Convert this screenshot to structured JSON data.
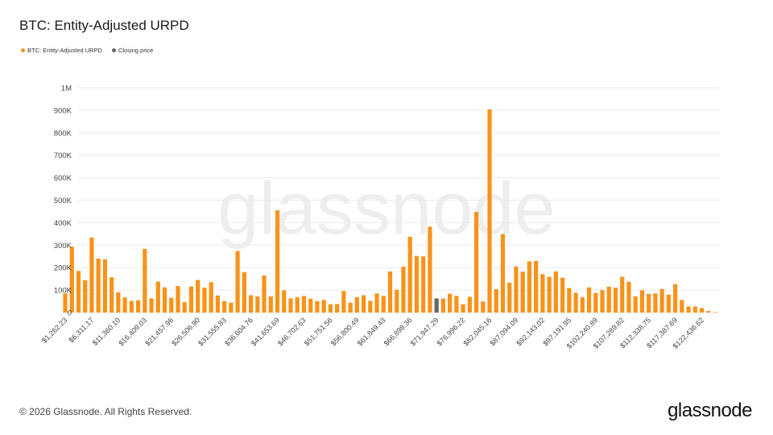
{
  "title": "BTC: Entity-Adjusted URPD",
  "legend": [
    {
      "label": "BTC: Entity-Adjusted URPD",
      "color": "#F7931A"
    },
    {
      "label": "Closing price",
      "color": "#666666"
    }
  ],
  "watermark": "glassnode",
  "footer": {
    "copyright": "© 2026 Glassnode. All Rights Reserved.",
    "logo": "glassnode"
  },
  "chart_data": {
    "type": "bar",
    "title": "BTC: Entity-Adjusted URPD",
    "xlabel": "",
    "ylabel": "",
    "ylim": [
      0,
      1000000
    ],
    "y_tick_labels": [
      "0",
      "100K",
      "200K",
      "300K",
      "400K",
      "500K",
      "600K",
      "700K",
      "800K",
      "900K",
      "1M"
    ],
    "x_tick_labels": [
      "$1,262.23",
      "$6,311.17",
      "$11,360.10",
      "$16,409.03",
      "$21,457.96",
      "$26,506.90",
      "$31,555.83",
      "$36,604.76",
      "$41,653.69",
      "$46,702.63",
      "$51,751.56",
      "$56,800.49",
      "$61,849.43",
      "$66,898.36",
      "$71,947.29",
      "$76,996.22",
      "$82,045.16",
      "$87,094.09",
      "$92,143.02",
      "$97,191.95",
      "$102,240.89",
      "$107,289.82",
      "$112,338.75",
      "$117,387.69",
      "$122,436.62"
    ],
    "x_tick_every": 4,
    "closing_price_bar_index": 56,
    "grid": true,
    "legend_position": "top-left",
    "colors": {
      "bar": "#F7931A",
      "closing": "#666666",
      "grid": "#ECECEC"
    },
    "values": [
      85000,
      293000,
      185000,
      144000,
      334000,
      240000,
      237000,
      157000,
      90000,
      67000,
      52000,
      55000,
      283000,
      63000,
      138000,
      112000,
      66000,
      118000,
      46000,
      116000,
      145000,
      111000,
      135000,
      76000,
      51000,
      44000,
      274000,
      180000,
      77000,
      72000,
      165000,
      72000,
      455000,
      99000,
      63000,
      68000,
      74000,
      62000,
      51000,
      56000,
      37000,
      38000,
      96000,
      44000,
      68000,
      77000,
      52000,
      85000,
      74000,
      183000,
      101000,
      204000,
      337000,
      252000,
      250000,
      382000,
      63000,
      62000,
      84000,
      74000,
      37000,
      70000,
      448000,
      49000,
      904000,
      104000,
      349000,
      133000,
      205000,
      182000,
      228000,
      230000,
      171000,
      159000,
      183000,
      155000,
      109000,
      88000,
      68000,
      112000,
      87000,
      100000,
      115000,
      111000,
      159000,
      137000,
      72000,
      99000,
      83000,
      85000,
      105000,
      80000,
      126000,
      56000,
      27000,
      27000,
      20000,
      7000,
      2000
    ]
  }
}
